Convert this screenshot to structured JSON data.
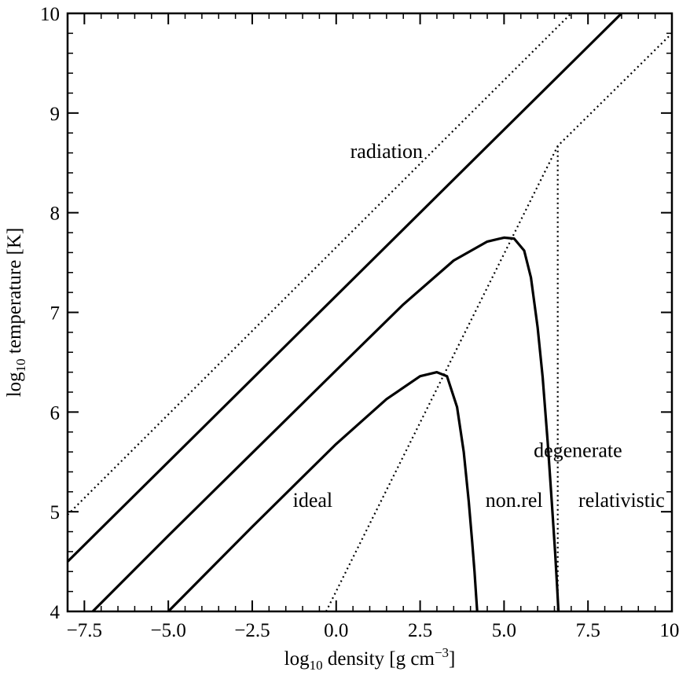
{
  "chart_data": {
    "type": "line",
    "title": "",
    "xlabel": {
      "main": "log",
      "sub": "10",
      "rest": " density [g cm",
      "sup": "−3",
      "end": "]"
    },
    "ylabel": {
      "main": "log",
      "sub": "10",
      "rest": " temperature [K]"
    },
    "xlim": [
      -8,
      10
    ],
    "ylim": [
      4,
      10
    ],
    "xticks": [
      -7.5,
      -5.0,
      -2.5,
      0.0,
      2.5,
      5.0,
      7.5,
      10.0
    ],
    "xtick_labels": [
      "−7.5",
      "−5.0",
      "−2.5",
      "0.0",
      "2.5",
      "5.0",
      "7.5",
      "10."
    ],
    "yticks": [
      4,
      5,
      6,
      7,
      8,
      9,
      10
    ],
    "ytick_labels": [
      "4",
      "5",
      "6",
      "7",
      "8",
      "9",
      "10"
    ],
    "series": [
      {
        "name": "radiation-boundary-dotted",
        "style": "dotted",
        "x": [
          -8,
          7.0
        ],
        "y": [
          4.97,
          10.0
        ]
      },
      {
        "name": "radiation-solid",
        "style": "solid",
        "x": [
          -8,
          8.5
        ],
        "y": [
          4.5,
          10.0
        ]
      },
      {
        "name": "upper-curve",
        "style": "solid",
        "x": [
          -7.25,
          -5.0,
          -2.5,
          0.0,
          2.0,
          3.5,
          4.5,
          5.0,
          5.3,
          5.6,
          5.8,
          6.0,
          6.15,
          6.3,
          6.42,
          6.52,
          6.58,
          6.62
        ],
        "y": [
          4.0,
          4.76,
          5.59,
          6.42,
          7.08,
          7.52,
          7.71,
          7.75,
          7.74,
          7.62,
          7.35,
          6.85,
          6.35,
          5.7,
          5.1,
          4.6,
          4.25,
          4.0
        ]
      },
      {
        "name": "lower-curve",
        "style": "solid",
        "x": [
          -5.0,
          -2.5,
          0.0,
          1.5,
          2.5,
          3.0,
          3.3,
          3.6,
          3.8,
          3.95,
          4.05,
          4.12,
          4.17,
          4.2
        ],
        "y": [
          4.0,
          4.85,
          5.68,
          6.13,
          6.36,
          6.4,
          6.36,
          6.05,
          5.6,
          5.1,
          4.7,
          4.4,
          4.15,
          4.0
        ]
      },
      {
        "name": "degeneracy-boundary-dotted",
        "style": "dotted",
        "x": [
          -0.3,
          6.6,
          10.0
        ],
        "y": [
          4.0,
          8.67,
          9.8
        ]
      },
      {
        "name": "relativistic-boundary-dotted",
        "style": "dotted",
        "x": [
          6.6,
          6.6
        ],
        "y": [
          8.67,
          4.0
        ]
      }
    ],
    "annotations": [
      {
        "text": "radiation",
        "x": 1.5,
        "y": 8.55
      },
      {
        "text": "degenerate",
        "x": 7.2,
        "y": 5.55
      },
      {
        "text": "ideal",
        "x": -0.7,
        "y": 5.05
      },
      {
        "text": "non.rel",
        "x": 5.3,
        "y": 5.05
      },
      {
        "text": "relativistic",
        "x": 8.5,
        "y": 5.05
      }
    ]
  }
}
